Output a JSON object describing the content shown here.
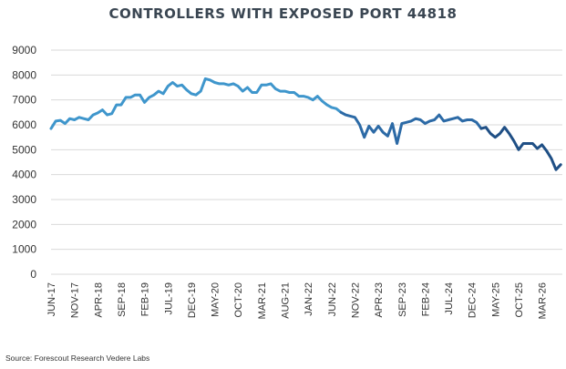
{
  "chart_data": {
    "type": "line",
    "title": "CONTROLLERS WITH EXPOSED PORT 44818",
    "source": "Source: Forescout Research Vedere Labs",
    "ylim": [
      0,
      9000
    ],
    "yticks": [
      0,
      1000,
      2000,
      3000,
      4000,
      5000,
      6000,
      7000,
      8000,
      9000
    ],
    "grid": true,
    "x_start": "2017-06",
    "x_labels": [
      "JUN-17",
      "NOV-17",
      "APR-18",
      "SEP-18",
      "FEB-19",
      "JUL-19",
      "DEC-19",
      "MAY-20",
      "OCT-20",
      "MAR-21",
      "AUG-21",
      "JAN-22",
      "JUN-22",
      "NOV-22",
      "APR-23",
      "SEP-23",
      "FEB-24",
      "JUL-24",
      "DEC-24",
      "MAY-25",
      "OCT-25",
      "MAR-26"
    ],
    "series": [
      {
        "color": "#3f96cc",
        "points": [
          [
            "2017-06",
            5850
          ],
          [
            "2017-07",
            6150
          ],
          [
            "2017-08",
            6180
          ],
          [
            "2017-09",
            6050
          ],
          [
            "2017-10",
            6250
          ],
          [
            "2017-11",
            6200
          ],
          [
            "2017-12",
            6300
          ],
          [
            "2018-01",
            6250
          ],
          [
            "2018-02",
            6200
          ],
          [
            "2018-03",
            6400
          ],
          [
            "2018-04",
            6480
          ],
          [
            "2018-05",
            6600
          ],
          [
            "2018-06",
            6400
          ],
          [
            "2018-07",
            6450
          ],
          [
            "2018-08",
            6800
          ],
          [
            "2018-09",
            6800
          ],
          [
            "2018-10",
            7100
          ],
          [
            "2018-11",
            7100
          ],
          [
            "2018-12",
            7200
          ],
          [
            "2019-01",
            7200
          ],
          [
            "2019-02",
            6900
          ],
          [
            "2019-03",
            7100
          ],
          [
            "2019-04",
            7200
          ],
          [
            "2019-05",
            7350
          ],
          [
            "2019-06",
            7250
          ],
          [
            "2019-07",
            7550
          ],
          [
            "2019-08",
            7700
          ],
          [
            "2019-09",
            7550
          ],
          [
            "2019-10",
            7600
          ],
          [
            "2019-11",
            7400
          ],
          [
            "2019-12",
            7250
          ],
          [
            "2020-01",
            7200
          ],
          [
            "2020-02",
            7350
          ],
          [
            "2020-03",
            7850
          ],
          [
            "2020-04",
            7800
          ],
          [
            "2020-05",
            7700
          ],
          [
            "2020-06",
            7650
          ],
          [
            "2020-07",
            7650
          ],
          [
            "2020-08",
            7600
          ],
          [
            "2020-09",
            7650
          ],
          [
            "2020-10",
            7550
          ],
          [
            "2020-11",
            7350
          ],
          [
            "2020-12",
            7500
          ],
          [
            "2021-01",
            7300
          ],
          [
            "2021-02",
            7300
          ],
          [
            "2021-03",
            7600
          ],
          [
            "2021-04",
            7600
          ],
          [
            "2021-05",
            7650
          ],
          [
            "2021-06",
            7450
          ],
          [
            "2021-07",
            7350
          ],
          [
            "2021-08",
            7350
          ],
          [
            "2021-09",
            7300
          ],
          [
            "2021-10",
            7300
          ],
          [
            "2021-11",
            7150
          ],
          [
            "2021-12",
            7150
          ],
          [
            "2022-01",
            7100
          ],
          [
            "2022-02",
            7000
          ],
          [
            "2022-03",
            7150
          ],
          [
            "2022-04",
            6950
          ],
          [
            "2022-05",
            6800
          ],
          [
            "2022-06",
            6700
          ],
          [
            "2022-07",
            6650
          ],
          [
            "2022-08",
            6500
          ]
        ]
      },
      {
        "color": "#2c6aa6",
        "points": [
          [
            "2022-08",
            6500
          ],
          [
            "2022-09",
            6400
          ],
          [
            "2022-10",
            6350
          ],
          [
            "2022-11",
            6300
          ],
          [
            "2022-12",
            6000
          ],
          [
            "2023-01",
            5500
          ],
          [
            "2023-02",
            5950
          ],
          [
            "2023-03",
            5700
          ],
          [
            "2023-04",
            5950
          ],
          [
            "2023-05",
            5700
          ],
          [
            "2023-06",
            5550
          ],
          [
            "2023-07",
            6050
          ],
          [
            "2023-08",
            5250
          ],
          [
            "2023-09",
            6050
          ],
          [
            "2023-10",
            6100
          ],
          [
            "2023-11",
            6150
          ],
          [
            "2023-12",
            6250
          ],
          [
            "2024-01",
            6200
          ],
          [
            "2024-02",
            6050
          ],
          [
            "2024-03",
            6150
          ],
          [
            "2024-04",
            6200
          ],
          [
            "2024-05",
            6400
          ],
          [
            "2024-06",
            6150
          ],
          [
            "2024-07",
            6200
          ],
          [
            "2024-08",
            6250
          ],
          [
            "2024-09",
            6300
          ],
          [
            "2024-10",
            6150
          ],
          [
            "2024-11",
            6200
          ],
          [
            "2024-12",
            6200
          ],
          [
            "2025-01",
            6100
          ],
          [
            "2025-02",
            5850
          ]
        ]
      },
      {
        "color": "#1f4f85",
        "points": [
          [
            "2025-02",
            5850
          ],
          [
            "2025-03",
            5900
          ],
          [
            "2025-04",
            5650
          ],
          [
            "2025-05",
            5500
          ],
          [
            "2025-06",
            5650
          ],
          [
            "2025-07",
            5900
          ],
          [
            "2025-08",
            5650
          ],
          [
            "2025-09",
            5350
          ],
          [
            "2025-10",
            5000
          ],
          [
            "2025-11",
            5250
          ],
          [
            "2025-12",
            5250
          ],
          [
            "2026-01",
            5250
          ],
          [
            "2026-02",
            5050
          ],
          [
            "2026-03",
            5200
          ],
          [
            "2026-04",
            4950
          ],
          [
            "2026-05",
            4650
          ],
          [
            "2026-06",
            4200
          ],
          [
            "2026-07",
            4400
          ]
        ]
      }
    ]
  }
}
